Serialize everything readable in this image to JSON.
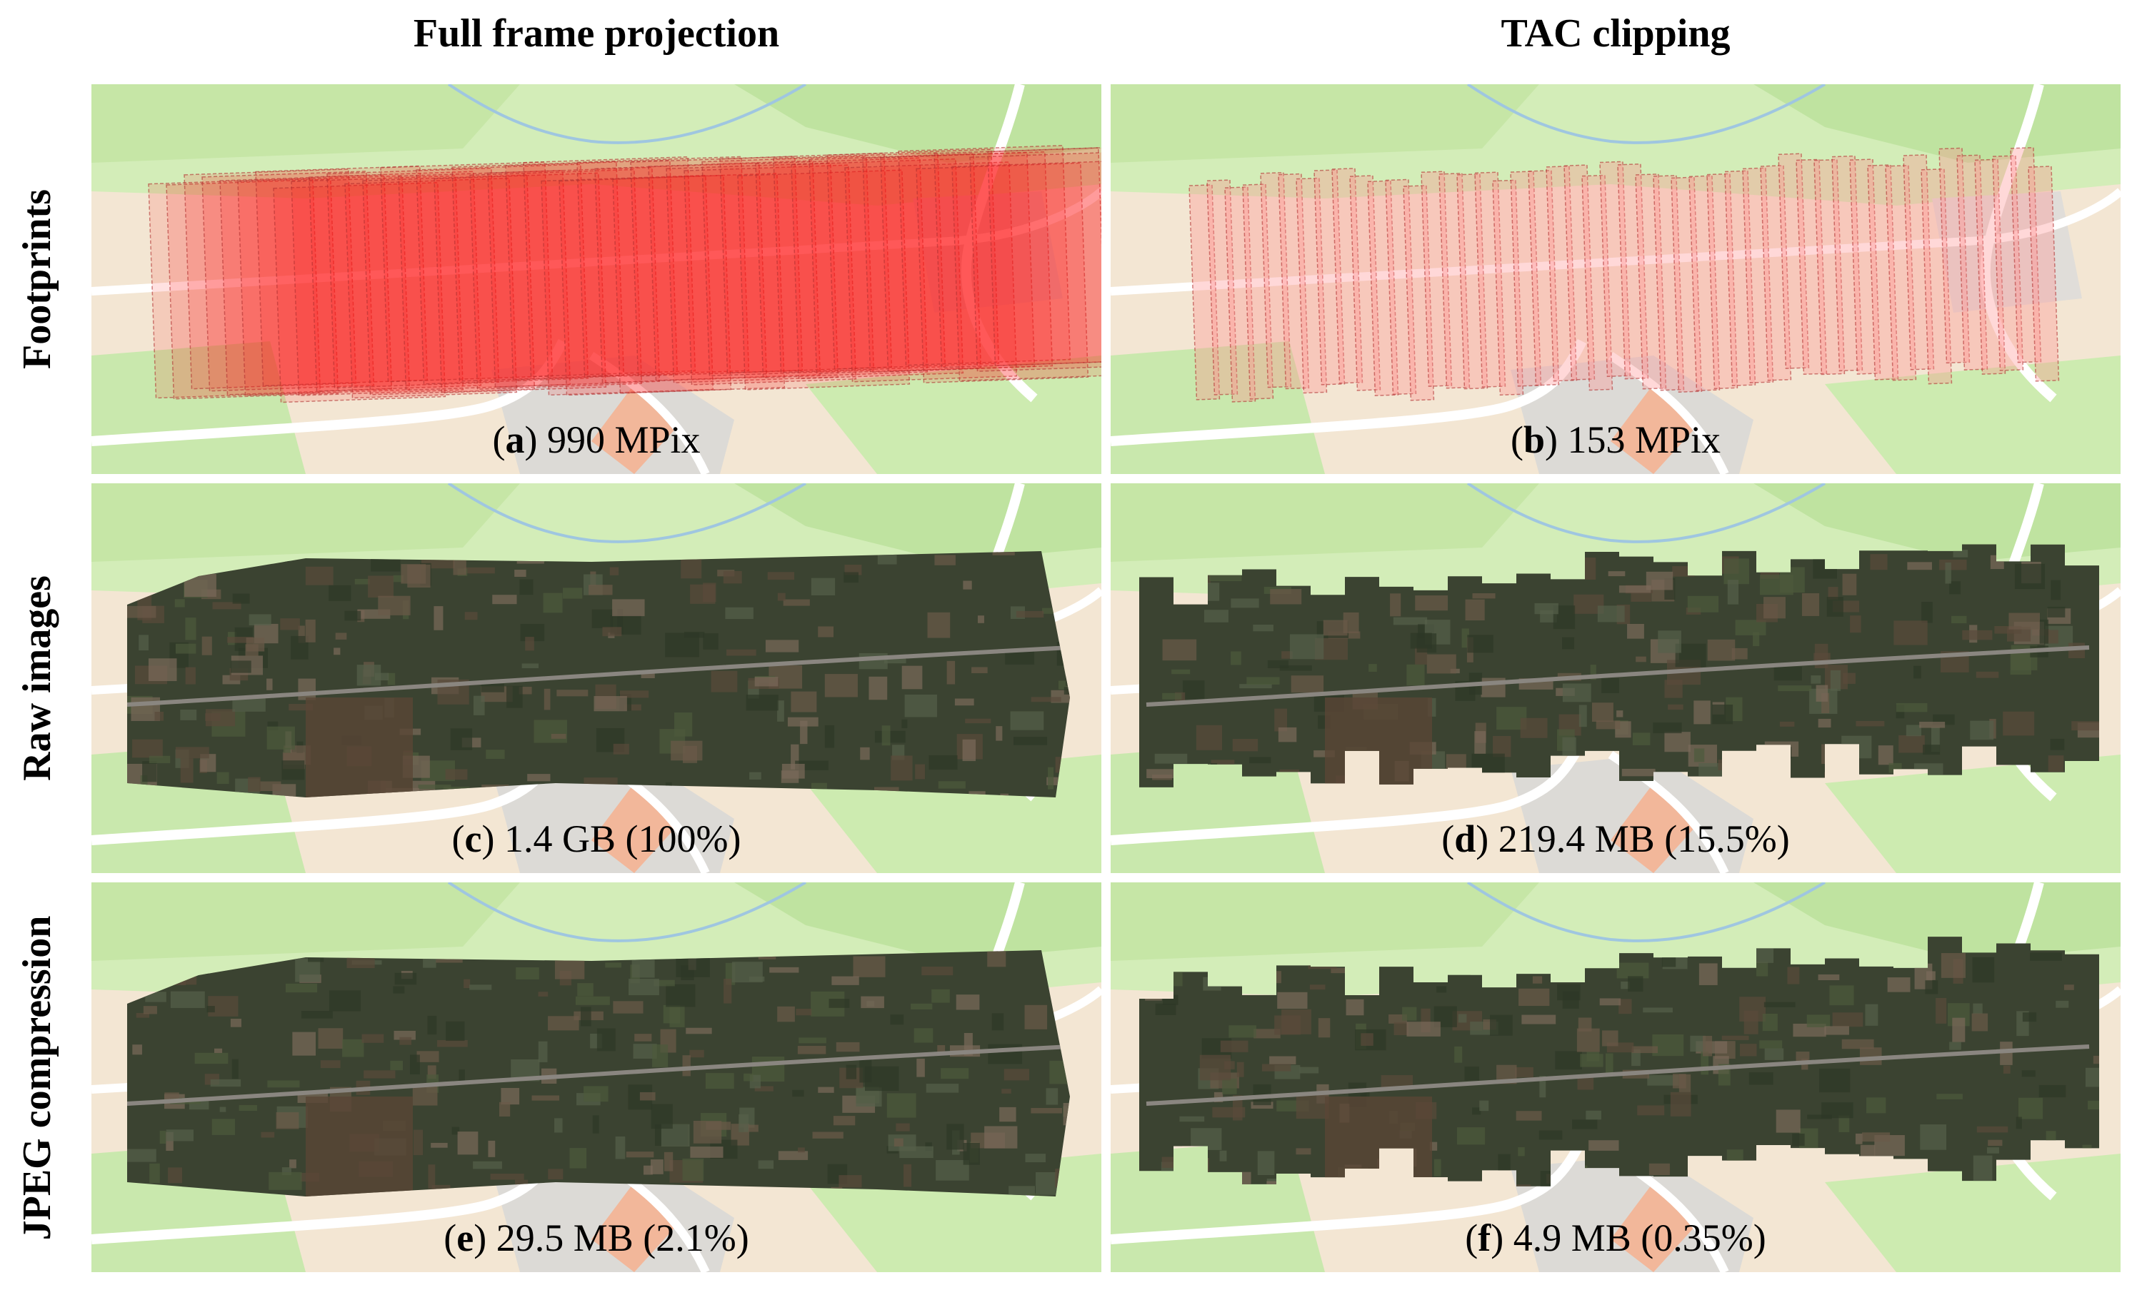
{
  "column_headers": [
    "Full frame projection",
    "TAC clipping"
  ],
  "row_labels": [
    "Footprints",
    "Raw images",
    "JPEG compression"
  ],
  "panels": [
    {
      "caption": "(a) 990 MPix"
    },
    {
      "caption": "(b) 153 MPix"
    },
    {
      "caption": "(c) 1.4 GB (100%)"
    },
    {
      "caption": "(d) 219.4 MB (15.5%)"
    },
    {
      "caption": "(e) 29.5 MB (2.1%)"
    },
    {
      "caption": "(f) 4.9 MB (0.35%)"
    }
  ]
}
